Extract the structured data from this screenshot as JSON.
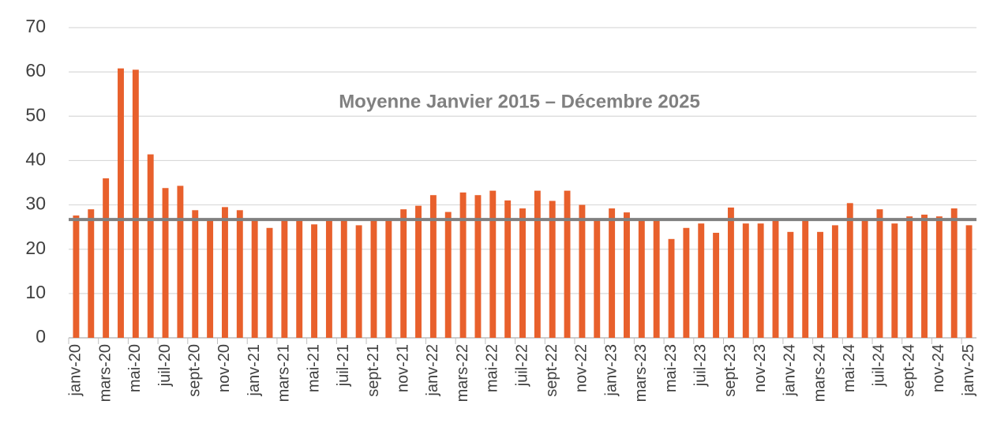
{
  "chart_data": {
    "type": "bar",
    "categories": [
      "janv-20",
      null,
      "mars-20",
      null,
      "mai-20",
      null,
      "juil-20",
      null,
      "sept-20",
      null,
      "nov-20",
      null,
      "janv-21",
      null,
      "mars-21",
      null,
      "mai-21",
      null,
      "juil-21",
      null,
      "sept-21",
      null,
      "nov-21",
      null,
      "janv-22",
      null,
      "mars-22",
      null,
      "mai-22",
      null,
      "juil-22",
      null,
      "sept-22",
      null,
      "nov-22",
      null,
      "janv-23",
      null,
      "mars-23",
      null,
      "mai-23",
      null,
      "juil-23",
      null,
      "sept-23",
      null,
      "nov-23",
      null,
      "janv-24",
      null,
      "mars-24",
      null,
      "mai-24",
      null,
      "juil-24",
      null,
      "sept-24",
      null,
      "nov-24",
      null,
      "janv-25"
    ],
    "values": [
      27.6,
      29,
      36,
      60.8,
      60.5,
      41.4,
      33.8,
      34.3,
      28.8,
      26.6,
      29.5,
      28.8,
      26.6,
      24.8,
      26.6,
      26.5,
      25.6,
      26.6,
      26.6,
      25.4,
      26.6,
      26.6,
      29,
      29.8,
      32.2,
      28.4,
      32.8,
      32.2,
      33.2,
      31,
      29.2,
      33.2,
      30.9,
      33.2,
      30,
      26.6,
      29.2,
      28.3,
      26.6,
      26.6,
      22.3,
      24.8,
      25.8,
      23.7,
      29.4,
      25.8,
      25.8,
      26.6,
      23.9,
      26.6,
      23.9,
      25.4,
      30.4,
      26.6,
      29,
      25.8,
      27.4,
      27.8,
      27.4,
      29.2,
      25.4
    ],
    "color": "#e8602c",
    "reference_line": {
      "value": 26.7,
      "label": "Moyenne Janvier 2015 – Décembre 2025",
      "color": "#808080"
    },
    "ylim": [
      0,
      70
    ],
    "yticks": [
      0,
      10,
      20,
      30,
      40,
      50,
      60,
      70
    ],
    "grid": true
  }
}
